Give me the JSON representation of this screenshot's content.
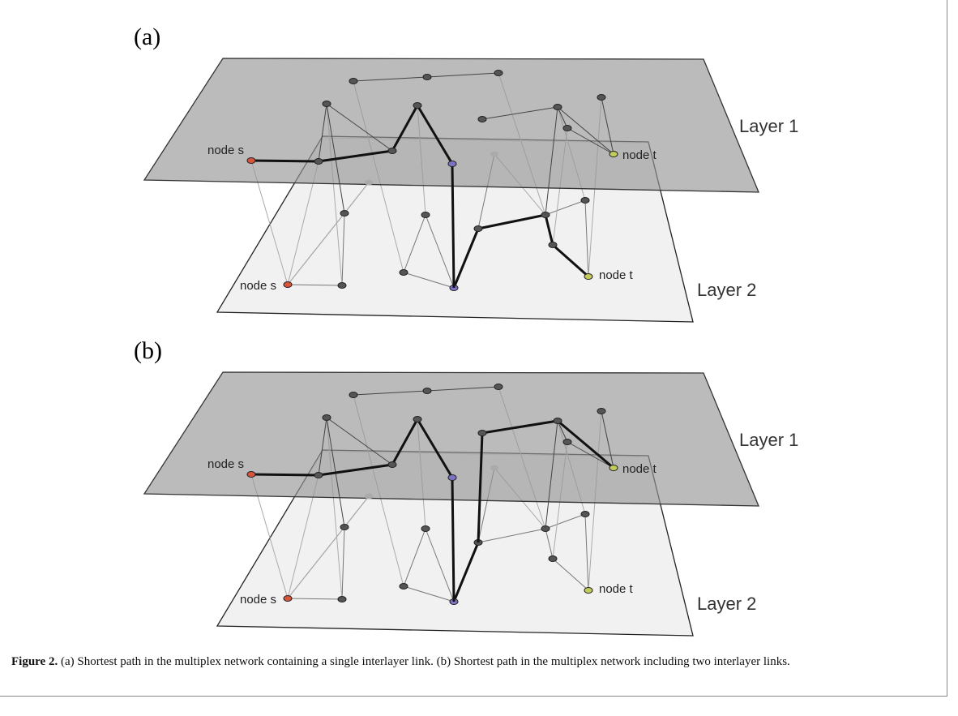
{
  "panels": [
    {
      "label": "(a)",
      "layer_1": "Layer 1",
      "layer_2": "Layer 2",
      "layer_1_source": "node s",
      "layer_1_target": "node t",
      "layer_2_source": "node s",
      "layer_2_target": "node t"
    },
    {
      "label": "(b)",
      "layer_1": "Layer 1",
      "layer_2": "Layer 2",
      "layer_1_source": "node s",
      "layer_1_target": "node t",
      "layer_2_source": "node s",
      "layer_2_target": "node t"
    }
  ],
  "caption": {
    "label": "Figure 2.",
    "text": "(a) Shortest path in the multiplex network containing a single interlayer link. (b) Shortest path in the multiplex network including two interlayer links."
  }
}
